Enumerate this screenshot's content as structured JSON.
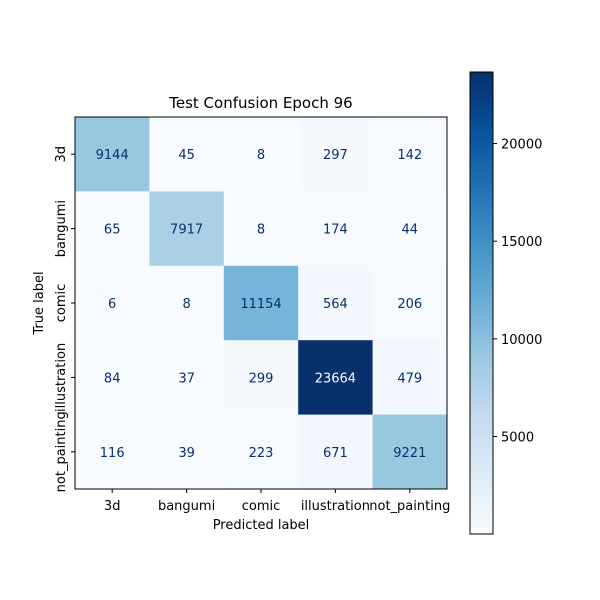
{
  "chart_data": {
    "type": "heatmap",
    "title": "Test Confusion Epoch 96",
    "xlabel": "Predicted label",
    "ylabel": "True label",
    "x_categories": [
      "3d",
      "bangumi",
      "comic",
      "illustration",
      "not_painting"
    ],
    "y_categories": [
      "3d",
      "bangumi",
      "comic",
      "illustration",
      "not_painting"
    ],
    "values": [
      [
        9144,
        45,
        8,
        297,
        142
      ],
      [
        65,
        7917,
        8,
        174,
        44
      ],
      [
        6,
        8,
        11154,
        564,
        206
      ],
      [
        84,
        37,
        299,
        23664,
        479
      ],
      [
        116,
        39,
        223,
        671,
        9221
      ]
    ],
    "colormap": "Blues",
    "color_low": "#f7fbff",
    "color_high": "#08306b",
    "colorbar": {
      "min": 6,
      "max": 23664,
      "ticks": [
        5000,
        10000,
        15000,
        20000
      ],
      "tick_labels": [
        "5000",
        "10000",
        "15000",
        "20000"
      ]
    },
    "text_color_dark": "#08306b",
    "text_color_light": "#f7fbff"
  }
}
